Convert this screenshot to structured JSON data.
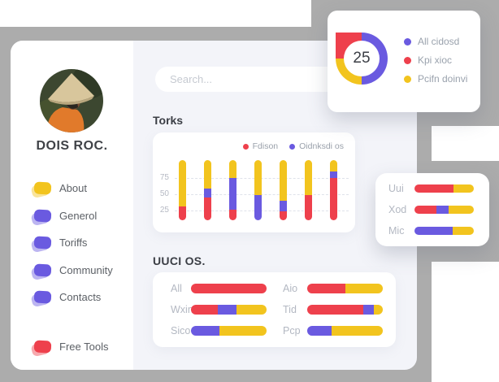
{
  "palette": {
    "red": "#ee404c",
    "purple": "#6a5ae0",
    "yellow": "#f2c41e",
    "gray_bg": "#acacac",
    "dashboard_bg": "#f3f4f9",
    "card_bg": "#ffffff",
    "text_dark": "#3f4247",
    "text_muted": "#b3b8c2",
    "menu_text": "#5c6066"
  },
  "sidebar": {
    "name": "DOIS ROC.",
    "avatar_alt": "person wearing conical straw hat",
    "menu": [
      {
        "label": "About",
        "color": "yellow"
      },
      {
        "label": "Generol",
        "color": "purple"
      },
      {
        "label": "Toriffs",
        "color": "purple"
      },
      {
        "label": "Community",
        "color": "purple"
      },
      {
        "label": "Contacts",
        "color": "purple"
      }
    ],
    "footer": {
      "label": "Free Tools",
      "color": "red"
    }
  },
  "search": {
    "placeholder": "Search..."
  },
  "chart_data": [
    {
      "id": "donut",
      "type": "pie",
      "center_label": "25",
      "square_corner": "top-left",
      "segments_clockwise_from_top": [
        {
          "color": "purple",
          "value": 50
        },
        {
          "color": "yellow",
          "value": 25
        },
        {
          "color": "red",
          "value": 25
        }
      ],
      "legend": [
        {
          "color": "purple",
          "label": "All cidosd"
        },
        {
          "color": "red",
          "label": "Kpi xioc"
        },
        {
          "color": "yellow",
          "label": "Pcifn doinvi"
        }
      ],
      "legend_position": "right"
    },
    {
      "id": "torks",
      "type": "bar",
      "title": "Torks",
      "orientation": "vertical-stacked",
      "legend": [
        {
          "color": "red",
          "label": "Fdison"
        },
        {
          "color": "purple",
          "label": "Oidnksdi os"
        }
      ],
      "yticks": [
        "75",
        "50",
        "25"
      ],
      "grid": "dashed",
      "stack_order_bottom_up": [
        "red",
        "purple",
        "yellow"
      ],
      "bars": [
        {
          "red": 23,
          "purple": 0,
          "yellow": 77
        },
        {
          "red": 38,
          "purple": 15,
          "yellow": 47
        },
        {
          "red": 17,
          "purple": 53,
          "yellow": 30
        },
        {
          "red": 0,
          "purple": 42,
          "yellow": 58
        },
        {
          "red": 15,
          "purple": 17,
          "yellow": 68
        },
        {
          "red": 42,
          "purple": 0,
          "yellow": 58
        },
        {
          "red": 70,
          "purple": 11,
          "yellow": 19
        }
      ]
    },
    {
      "id": "uuci",
      "type": "bar",
      "title": "UUCI OS.",
      "orientation": "horizontal-stacked",
      "columns": [
        [
          {
            "label": "All",
            "segments": [
              [
                "red",
                100
              ]
            ]
          },
          {
            "label": "Wxin",
            "segments": [
              [
                "red",
                36
              ],
              [
                "purple",
                24
              ],
              [
                "yellow",
                40
              ]
            ]
          },
          {
            "label": "Sico",
            "segments": [
              [
                "purple",
                38
              ],
              [
                "yellow",
                62
              ]
            ]
          }
        ],
        [
          {
            "label": "Aio",
            "segments": [
              [
                "red",
                50
              ],
              [
                "yellow",
                50
              ]
            ]
          },
          {
            "label": "Tid",
            "segments": [
              [
                "red",
                74
              ],
              [
                "purple",
                14
              ],
              [
                "yellow",
                12
              ]
            ]
          },
          {
            "label": "Pcp",
            "segments": [
              [
                "purple",
                32
              ],
              [
                "yellow",
                68
              ]
            ]
          }
        ]
      ]
    },
    {
      "id": "side-panel",
      "type": "bar",
      "orientation": "horizontal-stacked",
      "rows": [
        {
          "label": "Uui",
          "segments": [
            [
              "red",
              66
            ],
            [
              "yellow",
              34
            ]
          ]
        },
        {
          "label": "Xod",
          "segments": [
            [
              "red",
              37
            ],
            [
              "purple",
              21
            ],
            [
              "yellow",
              42
            ]
          ]
        },
        {
          "label": "Mic",
          "segments": [
            [
              "purple",
              64
            ],
            [
              "yellow",
              36
            ]
          ]
        }
      ]
    }
  ]
}
